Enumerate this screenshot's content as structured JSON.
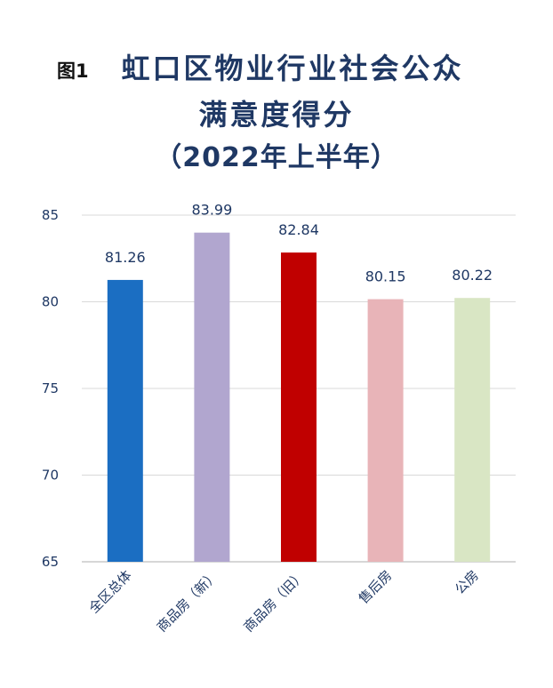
{
  "figure_label": "图1",
  "title_lines": [
    "虹口区物业行业社会公众",
    "满意度得分",
    "（2022年上半年）"
  ],
  "chart_data": {
    "type": "bar",
    "title": "虹口区物业行业社会公众满意度得分（2022年上半年）",
    "categories": [
      "全区总体",
      "商品房（新）",
      "商品房（旧）",
      "售后房",
      "公房"
    ],
    "values": [
      81.26,
      83.99,
      82.84,
      80.15,
      80.22
    ],
    "data_labels": [
      "81.26",
      "83.99",
      "82.84",
      "80.15",
      "80.22"
    ],
    "colors": [
      "#1b6ec2",
      "#b1a6cf",
      "#c00000",
      "#e8b4b8",
      "#d9e6c4"
    ],
    "ylim": [
      65,
      85
    ],
    "yticks": [
      65,
      70,
      75,
      80,
      85
    ],
    "grid": true,
    "xlabel": "",
    "ylabel": "",
    "legend": "none"
  }
}
